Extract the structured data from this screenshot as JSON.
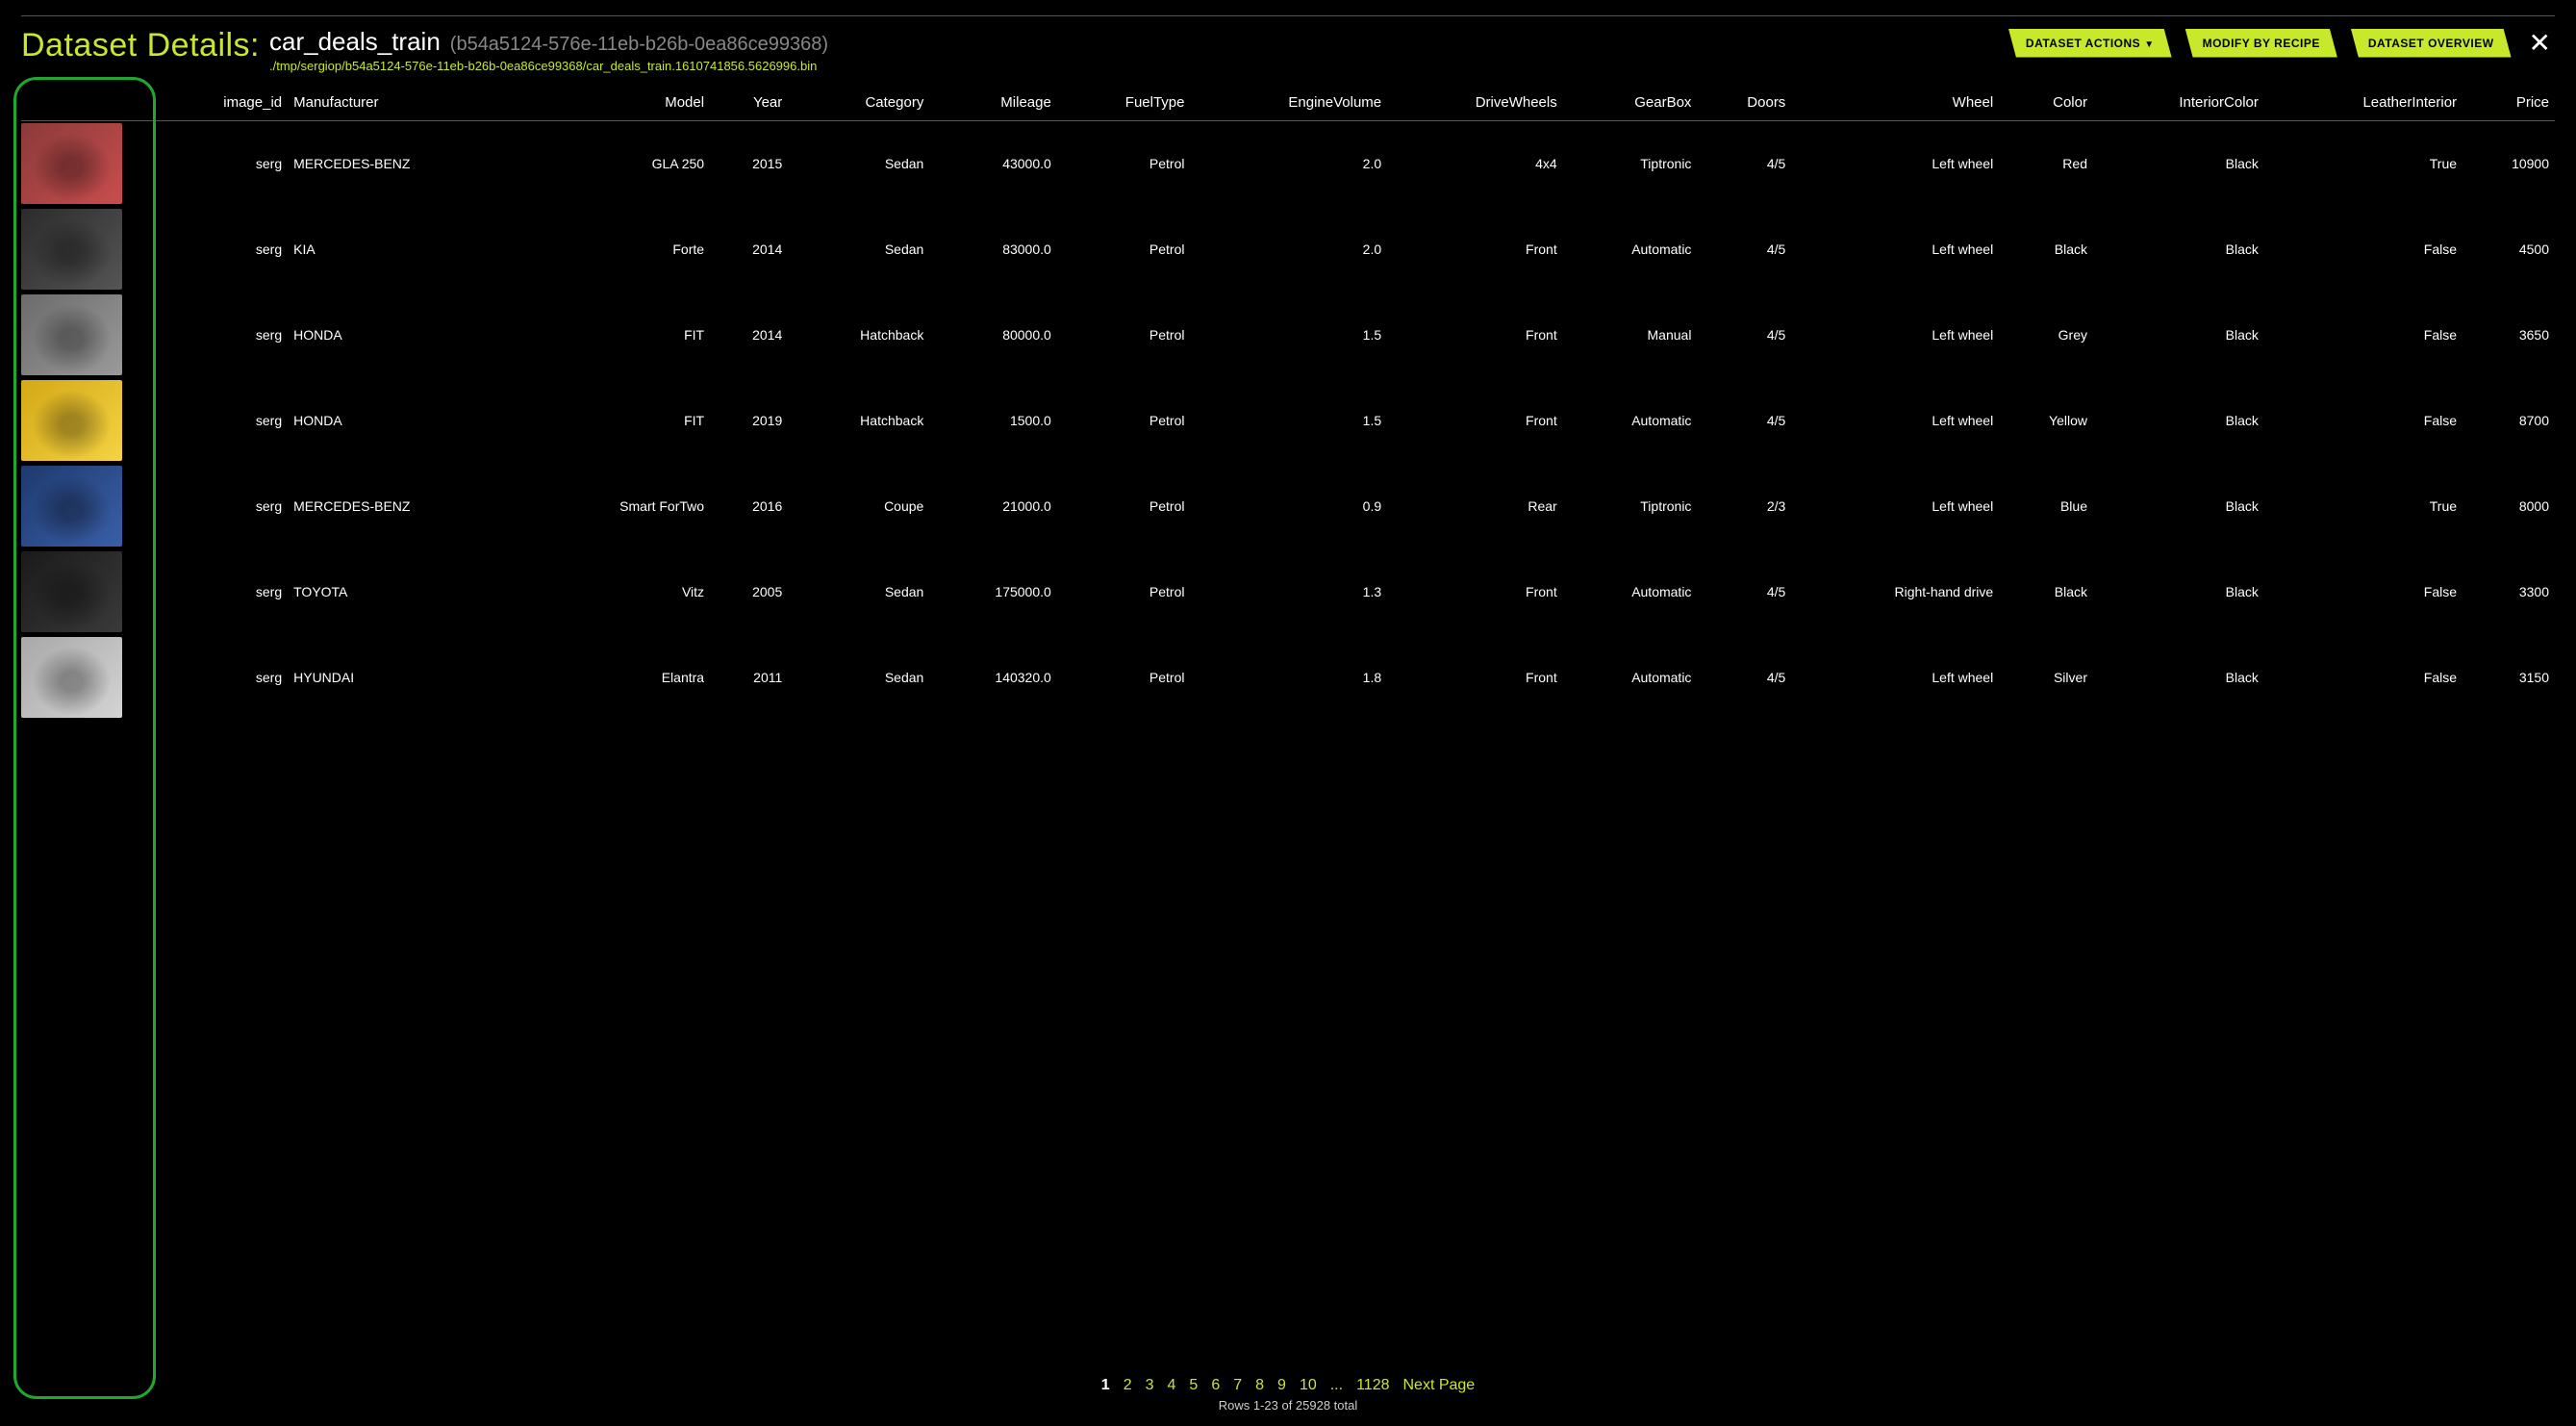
{
  "header": {
    "title_label": "Dataset Details:",
    "dataset_name": "car_deals_train",
    "uuid": "(b54a5124-576e-11eb-b26b-0ea86ce99368)",
    "path": "./tmp/sergiop/b54a5124-576e-11eb-b26b-0ea86ce99368/car_deals_train.1610741856.5626996.bin",
    "btn_actions": "DATASET ACTIONS",
    "btn_modify": "MODIFY BY RECIPE",
    "btn_overview": "DATASET OVERVIEW"
  },
  "columns": [
    "",
    "image_id",
    "Manufacturer",
    "Model",
    "Year",
    "Category",
    "Mileage",
    "FuelType",
    "EngineVolume",
    "DriveWheels",
    "GearBox",
    "Doors",
    "Wheel",
    "Color",
    "InteriorColor",
    "LeatherInterior",
    "Price"
  ],
  "col_align": [
    "left",
    "right",
    "left",
    "right",
    "right",
    "right",
    "right",
    "right",
    "right",
    "right",
    "right",
    "right",
    "right",
    "right",
    "right",
    "right",
    "right"
  ],
  "rows": [
    {
      "thumb": [
        "#8b3a3a",
        "#c94d4d"
      ],
      "image_id": "serg",
      "Manufacturer": "MERCEDES-BENZ",
      "Model": "GLA 250",
      "Year": "2015",
      "Category": "Sedan",
      "Mileage": "43000.0",
      "FuelType": "Petrol",
      "EngineVolume": "2.0",
      "DriveWheels": "4x4",
      "GearBox": "Tiptronic",
      "Doors": "4/5",
      "Wheel": "Left wheel",
      "Color": "Red",
      "InteriorColor": "Black",
      "LeatherInterior": "True",
      "Price": "10900"
    },
    {
      "thumb": [
        "#2b2b2b",
        "#555"
      ],
      "image_id": "serg",
      "Manufacturer": "KIA",
      "Model": "Forte",
      "Year": "2014",
      "Category": "Sedan",
      "Mileage": "83000.0",
      "FuelType": "Petrol",
      "EngineVolume": "2.0",
      "DriveWheels": "Front",
      "GearBox": "Automatic",
      "Doors": "4/5",
      "Wheel": "Left wheel",
      "Color": "Black",
      "InteriorColor": "Black",
      "LeatherInterior": "False",
      "Price": "4500"
    },
    {
      "thumb": [
        "#6b6b6b",
        "#9a9a9a"
      ],
      "image_id": "serg",
      "Manufacturer": "HONDA",
      "Model": "FIT",
      "Year": "2014",
      "Category": "Hatchback",
      "Mileage": "80000.0",
      "FuelType": "Petrol",
      "EngineVolume": "1.5",
      "DriveWheels": "Front",
      "GearBox": "Manual",
      "Doors": "4/5",
      "Wheel": "Left wheel",
      "Color": "Grey",
      "InteriorColor": "Black",
      "LeatherInterior": "False",
      "Price": "3650"
    },
    {
      "thumb": [
        "#d4a817",
        "#f5d342"
      ],
      "image_id": "serg",
      "Manufacturer": "HONDA",
      "Model": "FIT",
      "Year": "2019",
      "Category": "Hatchback",
      "Mileage": "1500.0",
      "FuelType": "Petrol",
      "EngineVolume": "1.5",
      "DriveWheels": "Front",
      "GearBox": "Automatic",
      "Doors": "4/5",
      "Wheel": "Left wheel",
      "Color": "Yellow",
      "InteriorColor": "Black",
      "LeatherInterior": "False",
      "Price": "8700"
    },
    {
      "thumb": [
        "#1e3a6e",
        "#3a5fa8"
      ],
      "image_id": "serg",
      "Manufacturer": "MERCEDES-BENZ",
      "Model": "Smart ForTwo",
      "Year": "2016",
      "Category": "Coupe",
      "Mileage": "21000.0",
      "FuelType": "Petrol",
      "EngineVolume": "0.9",
      "DriveWheels": "Rear",
      "GearBox": "Tiptronic",
      "Doors": "2/3",
      "Wheel": "Left wheel",
      "Color": "Blue",
      "InteriorColor": "Black",
      "LeatherInterior": "True",
      "Price": "8000"
    },
    {
      "thumb": [
        "#1a1a1a",
        "#3a3a3a"
      ],
      "image_id": "serg",
      "Manufacturer": "TOYOTA",
      "Model": "Vitz",
      "Year": "2005",
      "Category": "Sedan",
      "Mileage": "175000.0",
      "FuelType": "Petrol",
      "EngineVolume": "1.3",
      "DriveWheels": "Front",
      "GearBox": "Automatic",
      "Doors": "4/5",
      "Wheel": "Right-hand drive",
      "Color": "Black",
      "InteriorColor": "Black",
      "LeatherInterior": "False",
      "Price": "3300"
    },
    {
      "thumb": [
        "#a8a8a8",
        "#d4d4d4"
      ],
      "image_id": "serg",
      "Manufacturer": "HYUNDAI",
      "Model": "Elantra",
      "Year": "2011",
      "Category": "Sedan",
      "Mileage": "140320.0",
      "FuelType": "Petrol",
      "EngineVolume": "1.8",
      "DriveWheels": "Front",
      "GearBox": "Automatic",
      "Doors": "4/5",
      "Wheel": "Left wheel",
      "Color": "Silver",
      "InteriorColor": "Black",
      "LeatherInterior": "False",
      "Price": "3150"
    }
  ],
  "pager": {
    "pages": [
      "1",
      "2",
      "3",
      "4",
      "5",
      "6",
      "7",
      "8",
      "9",
      "10",
      "...",
      "1128"
    ],
    "current": "1",
    "next": "Next Page",
    "info": "Rows 1-23 of 25928 total"
  }
}
